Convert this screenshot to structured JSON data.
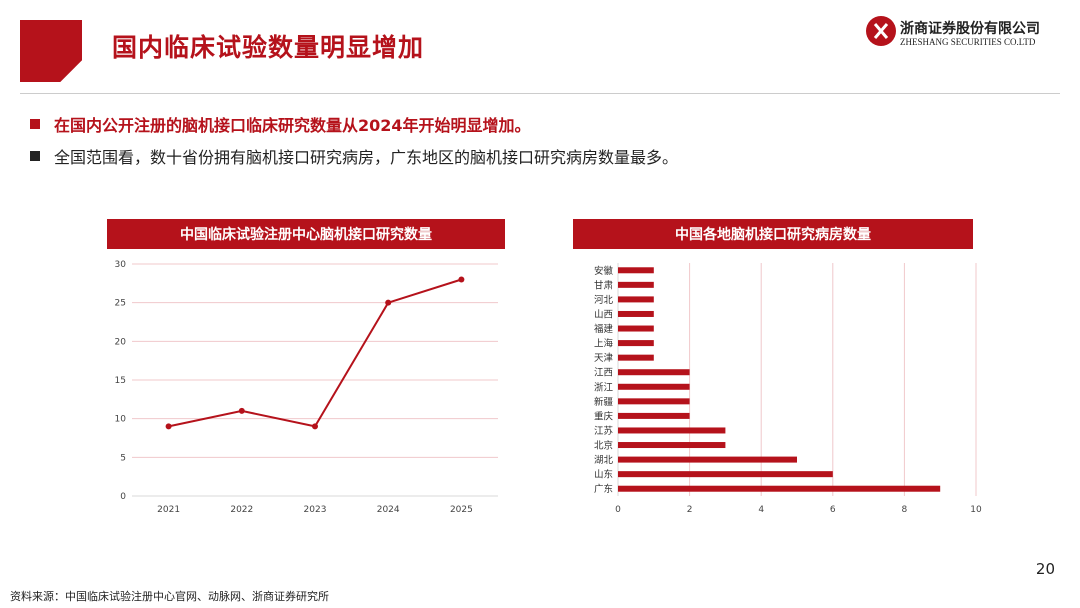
{
  "header": {
    "title": "国内临床试验数量明显增加",
    "logo_cn": "浙商证券股份有限公司",
    "logo_en": "ZHESHANG SECURITIES CO.LTD"
  },
  "bullets": [
    "在国内公开注册的脑机接口临床研究数量从2024年开始明显增加。",
    "全国范围看，数十省份拥有脑机接口研究病房，广东地区的脑机接口研究病房数量最多。"
  ],
  "colors": {
    "accent": "#b5121b",
    "grid": "#f0c8cb"
  },
  "chart_data": [
    {
      "type": "line",
      "title": "中国临床试验注册中心脑机接口研究数量",
      "x": [
        "2021",
        "2022",
        "2023",
        "2024",
        "2025"
      ],
      "values": [
        9,
        11,
        9,
        25,
        28
      ],
      "ylim": [
        0,
        30
      ],
      "yticks": [
        0,
        5,
        10,
        15,
        20,
        25,
        30
      ],
      "grid": true
    },
    {
      "type": "bar",
      "orientation": "horizontal",
      "title": "中国各地脑机接口研究病房数量",
      "categories": [
        "安徽",
        "甘肃",
        "河北",
        "山西",
        "福建",
        "上海",
        "天津",
        "江西",
        "浙江",
        "新疆",
        "重庆",
        "江苏",
        "北京",
        "湖北",
        "山东",
        "广东"
      ],
      "values": [
        1,
        1,
        1,
        1,
        1,
        1,
        1,
        2,
        2,
        2,
        2,
        3,
        3,
        5,
        6,
        9
      ],
      "xlim": [
        0,
        10
      ],
      "xticks": [
        0,
        2,
        4,
        6,
        8,
        10
      ],
      "grid": true
    }
  ],
  "footer": {
    "page_number": "20",
    "source": "资料来源：中国临床试验注册中心官网、动脉网、浙商证券研究所"
  }
}
